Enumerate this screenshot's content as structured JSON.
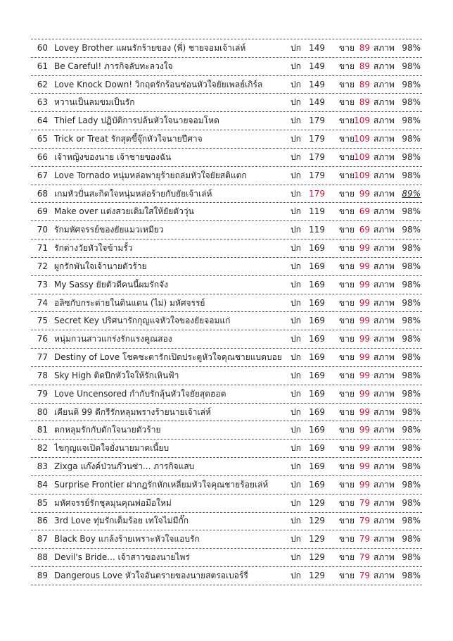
{
  "table": {
    "rows": [
      [
        "60",
        "Lovey Brother แผนรักร้ายของ (พี่) ชายจอมเจ้าเล่ห์",
        "ปก",
        "149",
        "ขาย",
        "89",
        "สภาพ",
        "98%"
      ],
      [
        "61",
        "Be Careful! ภารกิจลับทะลวงใจ",
        "ปก",
        "149",
        "ขาย",
        "89",
        "สภาพ",
        "98%"
      ],
      [
        "62",
        "Love Knock Down! วิกฤตรักร้อนซ่อนหัวใจยัยเพลย์เกิร์ล",
        "ปก",
        "149",
        "ขาย",
        "89",
        "สภาพ",
        "98%"
      ],
      [
        "63",
        "หวานเป็นลมขมเป็นรัก",
        "ปก",
        "149",
        "ขาย",
        "89",
        "สภาพ",
        "98%"
      ],
      [
        "64",
        "Thief Lady ปฏิบัติการปล้นหัวใจนายจอมโหด",
        "ปก",
        "179",
        "ขาย",
        "109",
        "สภาพ",
        "98%"
      ],
      [
        "65",
        "Trick or Treat รักสุดขี้จุ๊กหัวใจนายปีศาจ",
        "ปก",
        "179",
        "ขาย",
        "109",
        "สภาพ",
        "98%"
      ],
      [
        "66",
        "เจ้าหญิงของนาย เจ้าชายของฉัน",
        "ปก",
        "179",
        "ขาย",
        "109",
        "สภาพ",
        "98%"
      ],
      [
        "67",
        "Love Tornado หนุ่มหล่อพายุร้ายถล่มหัวใจยัยสติแตก",
        "ปก",
        "179",
        "ขาย",
        "109",
        "สภาพ",
        "98%"
      ],
      [
        "68",
        "เกมหัวปั่นสะกิดใจหนุ่มหล่อร้ายกับยัยเจ้าเล่ห์",
        "ปก",
        "179",
        "ขาย",
        "99",
        "สภาพ",
        "89%"
      ],
      [
        "69",
        "Make over แต่งสวยเติมใสให้ยัยตัววุ่น",
        "ปก",
        "119",
        "ขาย",
        "69",
        "สภาพ",
        "98%"
      ],
      [
        "70",
        "รักมหัศจรรย์ของยัยแมวเหมียว",
        "ปก",
        "119",
        "ขาย",
        "69",
        "สภาพ",
        "98%"
      ],
      [
        "71",
        "รักต่างวัยหัวใจข้ามรั้ว",
        "ปก",
        "169",
        "ขาย",
        "99",
        "สภาพ",
        "98%"
      ],
      [
        "72",
        "ผูกรักพันใจเจ้านายตัวร้าย",
        "ปก",
        "169",
        "ขาย",
        "99",
        "สภาพ",
        "98%"
      ],
      [
        "73",
        "My Sassy ยัยตัวดีคนนี้ผมรักจัง",
        "ปก",
        "169",
        "ขาย",
        "99",
        "สภาพ",
        "98%"
      ],
      [
        "74",
        "อลิซกับกระต่ายในดินแดน (ไม่) มหัศจรรย์",
        "ปก",
        "169",
        "ขาย",
        "99",
        "สภาพ",
        "98%"
      ],
      [
        "75",
        "Secret Key ปริศนารักกุญแจหัวใจของยัยจอมแก่",
        "ปก",
        "169",
        "ขาย",
        "99",
        "สภาพ",
        "98%"
      ],
      [
        "76",
        "หนุ่มกวนสาวแกร่งรักแรงคูณสอง",
        "ปก",
        "169",
        "ขาย",
        "99",
        "สภาพ",
        "98%"
      ],
      [
        "77",
        "Destiny of Love โชคชะตารักเปิดประตูหัวใจคุณชายแบดบอย",
        "ปก",
        "169",
        "ขาย",
        "99",
        "สภาพ",
        "98%"
      ],
      [
        "78",
        "Sky High ติดปีกหัวใจให้รักเหินฟ้า",
        "ปก",
        "169",
        "ขาย",
        "99",
        "สภาพ",
        "98%"
      ],
      [
        "79",
        "Love Uncensored กำกับรักลุ้นหัวใจยัยสุดฮอต",
        "ปก",
        "169",
        "ขาย",
        "99",
        "สภาพ",
        "98%"
      ],
      [
        "80",
        "เคียนติ 99 ดีกรีรักหลุมพรางร้ายนายเจ้าเล่ห์",
        "ปก",
        "169",
        "ขาย",
        "99",
        "สภาพ",
        "98%"
      ],
      [
        "81",
        "ตกหลุมรักกับดักใจนายตัวร้าย",
        "ปก",
        "169",
        "ขาย",
        "99",
        "สภาพ",
        "98%"
      ],
      [
        "82",
        "ไขกุญแจเปิดใจยั่งนายมาดเนี้ยบ",
        "ปก",
        "169",
        "ขาย",
        "99",
        "สภาพ",
        "98%"
      ],
      [
        "83",
        "Zixga แก๊งค์ป่วนก๊วนซ่า... ภารกิจแสบ",
        "ปก",
        "169",
        "ขาย",
        "99",
        "สภาพ",
        "98%"
      ],
      [
        "84",
        "Surprise Frontier ฝากฎรักหักเหลี่ยมหัวใจคุณชายร้อยเล่ห์",
        "ปก",
        "169",
        "ขาย",
        "99",
        "สภาพ",
        "98%"
      ],
      [
        "85",
        "มหัศจรรย์รักชุลมุนคุณพ่อมือใหม่",
        "ปก",
        "129",
        "ขาย",
        "79",
        "สภาพ",
        "98%"
      ],
      [
        "86",
        "3rd Love ทุ่มรักเต็มร้อย เทใจไม่มีกั๊ก",
        "ปก",
        "129",
        "ขาย",
        "79",
        "สภาพ",
        "98%"
      ],
      [
        "87",
        "Black Boy แกล้งร้ายเพราะหัวใจแอบรัก",
        "ปก",
        "129",
        "ขาย",
        "79",
        "สภาพ",
        "98%"
      ],
      [
        "88",
        "Devil's Bride... เจ้าสาวของนายไพร่",
        "ปก",
        "129",
        "ขาย",
        "79",
        "สภาพ",
        "98%"
      ],
      [
        "89",
        "Dangerous Love หัวใจอันตรายของนายสตรอเบอร์รี่",
        "ปก",
        "129",
        "ขาย",
        "79",
        "สภาพ",
        "98%"
      ]
    ]
  }
}
